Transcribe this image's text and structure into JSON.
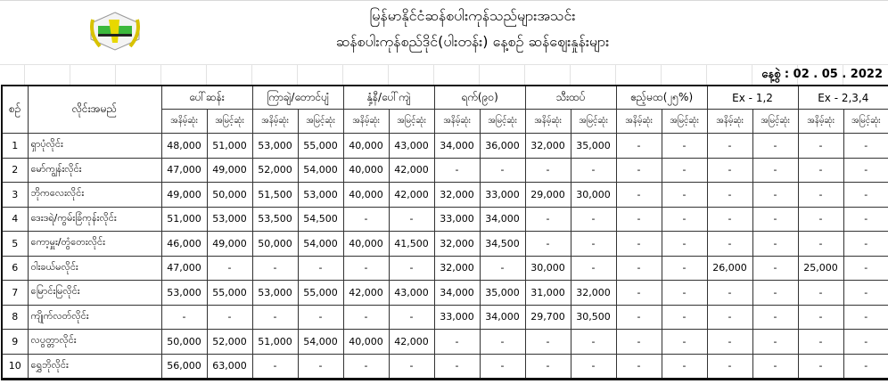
{
  "header": {
    "title_line1": "မြန်မာနိုင်ငံဆန်စပါးကုန်သည်များအသင်း",
    "title_line2": "ဆန်စပါးကုန်စည်ဒိုင်(ပါးတန်း) နေ့စဉ် ဆန်ဈေးနှုန်းများ",
    "date_label": "နေ့စွဲ",
    "date_value": ": 02 . 05 . 2022",
    "logo_icon": "association-logo-icon"
  },
  "table": {
    "col_no": "စဉ်",
    "col_name": "လိုင်းအမည်",
    "groups": [
      "ပေါ်ဆန်း",
      "ကြာချဲ/တောင်ပျံ",
      "နှံ့နီ/ပေါ်ကျဲ",
      "ရက်(၉၀)",
      "သီးထပ်",
      "ဧည့်မထ(၂၅%)",
      "Ex - 1,2",
      "Ex - 2,3,4"
    ],
    "sub_low": "အနိမ့်ဆုံး",
    "sub_high": "အမြင့်ဆုံး",
    "rows": [
      {
        "no": "1",
        "name": "ရှာပုံလိုင်း",
        "values": [
          "48,000",
          "51,000",
          "53,000",
          "55,000",
          "40,000",
          "43,000",
          "34,000",
          "36,000",
          "32,000",
          "35,000",
          "-",
          "-",
          "-",
          "-",
          "-",
          "-"
        ]
      },
      {
        "no": "2",
        "name": "မော်ကျွန်းလိုင်း",
        "values": [
          "47,000",
          "49,000",
          "52,000",
          "54,000",
          "40,000",
          "42,000",
          "-",
          "-",
          "-",
          "-",
          "-",
          "-",
          "-",
          "-",
          "-",
          "-"
        ]
      },
      {
        "no": "3",
        "name": "ဘိုကလေးလိုင်း",
        "values": [
          "49,000",
          "50,000",
          "51,500",
          "53,000",
          "40,000",
          "42,000",
          "32,000",
          "33,000",
          "29,000",
          "30,000",
          "-",
          "-",
          "-",
          "-",
          "-",
          "-"
        ]
      },
      {
        "no": "4",
        "name": "ဒေးဒရဲ/ကွမ်းခြံကုန်းလိုင်း",
        "values": [
          "51,000",
          "53,000",
          "53,500",
          "54,500",
          "-",
          "-",
          "33,000",
          "34,000",
          "-",
          "-",
          "-",
          "-",
          "-",
          "-",
          "-",
          "-"
        ]
      },
      {
        "no": "5",
        "name": "ကော့မှူး/တွံတေးလိုင်း",
        "values": [
          "46,000",
          "49,000",
          "50,000",
          "54,000",
          "40,000",
          "41,500",
          "32,000",
          "34,500",
          "-",
          "-",
          "-",
          "-",
          "-",
          "-",
          "-",
          "-"
        ]
      },
      {
        "no": "6",
        "name": "ဝါးခယ်မလိုင်း",
        "values": [
          "47,000",
          "-",
          "-",
          "-",
          "-",
          "-",
          "32,000",
          "-",
          "30,000",
          "-",
          "-",
          "-",
          "26,000",
          "-",
          "25,000",
          "-"
        ]
      },
      {
        "no": "7",
        "name": "မြောင်းမြလိုင်း",
        "values": [
          "53,000",
          "55,000",
          "53,000",
          "55,000",
          "42,000",
          "43,000",
          "34,000",
          "35,000",
          "31,000",
          "32,000",
          "-",
          "-",
          "-",
          "-",
          "-",
          "-"
        ]
      },
      {
        "no": "8",
        "name": "ကျိုက်လတ်လိုင်း",
        "values": [
          "-",
          "-",
          "-",
          "-",
          "-",
          "-",
          "33,000",
          "34,000",
          "29,700",
          "30,500",
          "-",
          "-",
          "-",
          "-",
          "-",
          "-"
        ]
      },
      {
        "no": "9",
        "name": "လပွတ္တာလိုင်း",
        "values": [
          "50,000",
          "52,000",
          "51,000",
          "54,000",
          "40,000",
          "42,000",
          "-",
          "-",
          "-",
          "-",
          "-",
          "-",
          "-",
          "-",
          "-",
          "-"
        ]
      },
      {
        "no": "10",
        "name": "ရွှေဘိုလိုင်း",
        "values": [
          "56,000",
          "63,000",
          "-",
          "-",
          "-",
          "-",
          "-",
          "-",
          "-",
          "-",
          "-",
          "-",
          "-",
          "-",
          "-",
          "-"
        ]
      }
    ]
  }
}
